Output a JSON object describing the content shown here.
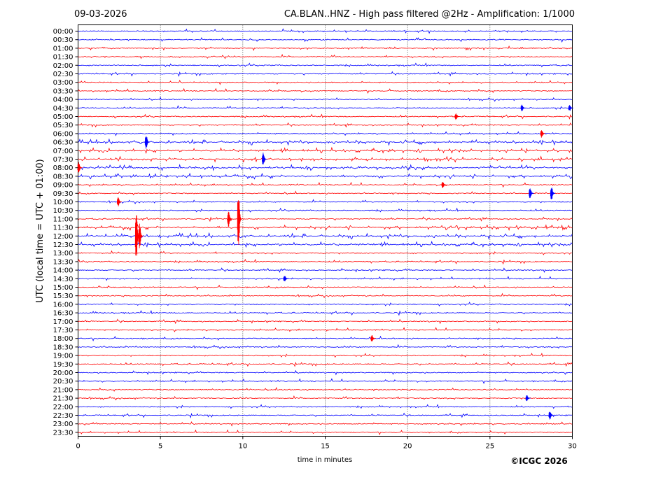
{
  "header": {
    "date": "09-03-2026",
    "title": "CA.BLAN..HNZ - High pass filtered @2Hz - Amplification: 1/1000"
  },
  "copyright": "©ICGC 2026",
  "chart_data": {
    "type": "line",
    "xlabel": "time in minutes",
    "ylabel": "UTC (local time = UTC + 01:00)",
    "xlim": [
      0,
      30
    ],
    "x_ticks": [
      "0",
      "5",
      "10",
      "15",
      "20",
      "25",
      "30"
    ],
    "grid": "vertical dotted at every 5 minutes",
    "colors": {
      "odd_hours": "#ff0000",
      "even_hours": "#0000ff"
    },
    "rows": [
      "00:00",
      "00:30",
      "01:00",
      "01:30",
      "02:00",
      "02:30",
      "03:00",
      "03:30",
      "04:00",
      "04:30",
      "05:00",
      "05:30",
      "06:00",
      "06:30",
      "07:00",
      "07:30",
      "08:00",
      "08:30",
      "09:00",
      "09:30",
      "10:00",
      "10:30",
      "11:00",
      "11:30",
      "12:00",
      "12:30",
      "13:00",
      "13:30",
      "14:00",
      "14:30",
      "15:00",
      "15:30",
      "16:00",
      "16:30",
      "17:00",
      "17:30",
      "18:00",
      "18:30",
      "19:00",
      "19:30",
      "20:00",
      "20:30",
      "21:00",
      "21:30",
      "22:00",
      "22:30",
      "23:00",
      "23:30"
    ],
    "events": [
      {
        "row": "11:00",
        "minute": 9.8,
        "amplitude": 3.5,
        "color": "#ff0000"
      },
      {
        "row": "11:00",
        "minute": 9.2,
        "amplitude": 1.0,
        "color": "#ff0000"
      },
      {
        "row": "12:00",
        "minute": 3.6,
        "amplitude": 3.0,
        "color": "#ff0000"
      },
      {
        "row": "12:00",
        "minute": 3.8,
        "amplitude": 1.5,
        "color": "#ff0000"
      },
      {
        "row": "07:30",
        "minute": 11.3,
        "amplitude": 0.8,
        "color": "#0000ff"
      },
      {
        "row": "06:30",
        "minute": 4.2,
        "amplitude": 0.9,
        "color": "#0000ff"
      },
      {
        "row": "09:30",
        "minute": 28.8,
        "amplitude": 0.9,
        "color": "#0000ff"
      },
      {
        "row": "09:30",
        "minute": 27.5,
        "amplitude": 0.7,
        "color": "#0000ff"
      },
      {
        "row": "08:00",
        "minute": 0.1,
        "amplitude": 0.7,
        "color": "#ff0000"
      },
      {
        "row": "06:00",
        "minute": 28.2,
        "amplitude": 0.5,
        "color": "#ff0000"
      },
      {
        "row": "22:30",
        "minute": 28.7,
        "amplitude": 0.6,
        "color": "#0000ff"
      },
      {
        "row": "21:30",
        "minute": 27.3,
        "amplitude": 0.4,
        "color": "#0000ff"
      },
      {
        "row": "18:00",
        "minute": 17.9,
        "amplitude": 0.4,
        "color": "#ff0000"
      },
      {
        "row": "10:00",
        "minute": 2.5,
        "amplitude": 0.6,
        "color": "#ff0000"
      },
      {
        "row": "14:30",
        "minute": 12.6,
        "amplitude": 0.4,
        "color": "#0000ff"
      },
      {
        "row": "09:00",
        "minute": 22.2,
        "amplitude": 0.4,
        "color": "#ff0000"
      },
      {
        "row": "05:00",
        "minute": 23.0,
        "amplitude": 0.4,
        "color": "#ff0000"
      },
      {
        "row": "04:30",
        "minute": 27.0,
        "amplitude": 0.4,
        "color": "#0000ff"
      },
      {
        "row": "04:30",
        "minute": 29.9,
        "amplitude": 0.4,
        "color": "#0000ff"
      }
    ],
    "noisy_rows": [
      "06:30",
      "07:00",
      "07:30",
      "08:00",
      "08:30",
      "11:30",
      "12:00",
      "12:30"
    ]
  }
}
